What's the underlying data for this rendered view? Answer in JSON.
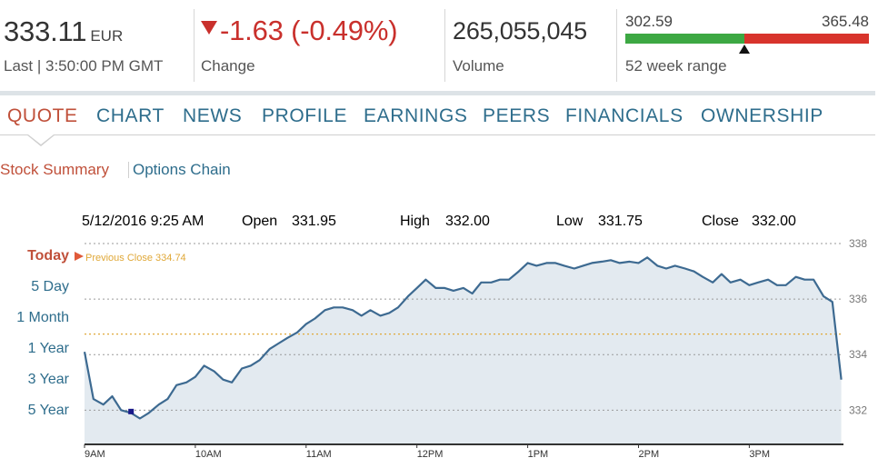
{
  "quote": {
    "price": "333.11",
    "currency": "EUR",
    "last_label": "Last | 3:50:00 PM GMT",
    "change": "-1.63 (-0.49%)",
    "change_label": "Change",
    "volume": "265,055,045",
    "volume_label": "Volume",
    "range_low": "302.59",
    "range_high": "365.48",
    "range_label": "52 week range",
    "range_position": 0.49,
    "colors": {
      "negative": "#c9302c",
      "range_low": "#3da843",
      "range_high": "#d8342c"
    }
  },
  "tabs": [
    {
      "label": "QUOTE",
      "active": true
    },
    {
      "label": "CHART"
    },
    {
      "label": "NEWS"
    },
    {
      "label": "PROFILE"
    },
    {
      "label": "EARNINGS"
    },
    {
      "label": "PEERS"
    },
    {
      "label": "FINANCIALS"
    },
    {
      "label": "OWNERSHIP"
    }
  ],
  "subnav": {
    "summary": "Stock Summary",
    "options": "Options Chain"
  },
  "ohlc": {
    "datetime": "5/12/2016 9:25 AM",
    "open_label": "Open",
    "open": "331.95",
    "high_label": "High",
    "high": "332.00",
    "low_label": "Low",
    "low": "331.75",
    "close_label": "Close",
    "close": "332.00"
  },
  "ranges": [
    "Today",
    "5 Day",
    "1 Month",
    "1 Year",
    "3 Year",
    "5 Year"
  ],
  "chart_data": {
    "type": "area",
    "previous_close_label": "Previous Close 334.74",
    "previous_close": 334.74,
    "ylim": [
      330.8,
      338.0
    ],
    "yticks": [
      332,
      334,
      336,
      338
    ],
    "xlim": [
      9,
      15.85
    ],
    "xticks": [
      {
        "value": 9,
        "label": "9AM"
      },
      {
        "value": 10,
        "label": "10AM"
      },
      {
        "value": 11,
        "label": "11AM"
      },
      {
        "value": 12,
        "label": "12PM"
      },
      {
        "value": 13,
        "label": "1PM"
      },
      {
        "value": 14,
        "label": "2PM"
      },
      {
        "value": 15,
        "label": "3PM"
      }
    ],
    "grid": true,
    "highlight_point": {
      "x": 9.42,
      "y": 331.95
    },
    "colors": {
      "line": "#3d6a91",
      "fill": "#e3eaf0",
      "prev_close": "#e0a838",
      "grid": "#9a9a9a"
    },
    "x": [
      9.0,
      9.08,
      9.17,
      9.25,
      9.33,
      9.42,
      9.5,
      9.58,
      9.67,
      9.75,
      9.83,
      9.92,
      10.0,
      10.08,
      10.17,
      10.25,
      10.33,
      10.42,
      10.5,
      10.58,
      10.67,
      10.75,
      10.83,
      10.92,
      11.0,
      11.08,
      11.17,
      11.25,
      11.33,
      11.42,
      11.5,
      11.58,
      11.67,
      11.75,
      11.83,
      11.92,
      12.0,
      12.08,
      12.17,
      12.25,
      12.33,
      12.42,
      12.5,
      12.58,
      12.67,
      12.75,
      12.83,
      12.92,
      13.0,
      13.08,
      13.17,
      13.25,
      13.33,
      13.42,
      13.5,
      13.58,
      13.67,
      13.75,
      13.83,
      13.92,
      14.0,
      14.08,
      14.17,
      14.25,
      14.33,
      14.42,
      14.5,
      14.58,
      14.67,
      14.75,
      14.83,
      14.92,
      15.0,
      15.08,
      15.17,
      15.25,
      15.33,
      15.42,
      15.5,
      15.58,
      15.67,
      15.75,
      15.83
    ],
    "y": [
      334.1,
      332.4,
      332.2,
      332.5,
      332.0,
      331.9,
      331.7,
      331.9,
      332.2,
      332.4,
      332.9,
      333.0,
      333.2,
      333.6,
      333.4,
      333.1,
      333.0,
      333.5,
      333.6,
      333.8,
      334.2,
      334.4,
      334.6,
      334.8,
      335.1,
      335.3,
      335.6,
      335.7,
      335.7,
      335.6,
      335.4,
      335.6,
      335.4,
      335.5,
      335.7,
      336.1,
      336.4,
      336.7,
      336.4,
      336.4,
      336.3,
      336.4,
      336.2,
      336.6,
      336.6,
      336.7,
      336.7,
      337.0,
      337.3,
      337.2,
      337.3,
      337.3,
      337.2,
      337.1,
      337.2,
      337.3,
      337.35,
      337.4,
      337.3,
      337.35,
      337.3,
      337.5,
      337.2,
      337.1,
      337.2,
      337.1,
      337.0,
      336.8,
      336.6,
      336.9,
      336.6,
      336.7,
      336.5,
      336.6,
      336.7,
      336.5,
      336.5,
      336.8,
      336.7,
      336.7,
      336.1,
      335.9,
      333.1
    ]
  }
}
